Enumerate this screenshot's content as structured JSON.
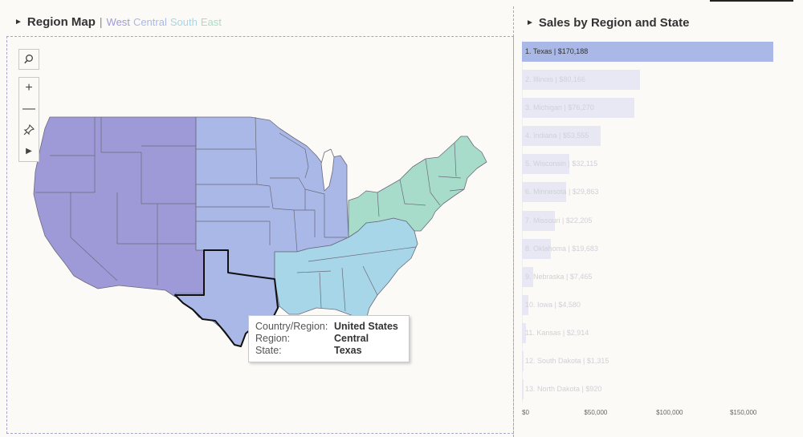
{
  "map_panel": {
    "title": "Region Map",
    "separator": "|",
    "legend": [
      {
        "label": "West",
        "color": "#9e9ad7"
      },
      {
        "label": "Central",
        "color": "#a9b8e6"
      },
      {
        "label": "South",
        "color": "#a7d6e8"
      },
      {
        "label": "East",
        "color": "#a8dcca"
      }
    ],
    "tooltip": {
      "rows": [
        {
          "key": "Country/Region:",
          "value": "United States"
        },
        {
          "key": "Region:",
          "value": "Central"
        },
        {
          "key": "State:",
          "value": "Texas"
        }
      ]
    }
  },
  "bar_panel": {
    "title": "Sales by Region and State",
    "selected_color": "#a9b8e6",
    "bar_color": "#e7e8f4"
  },
  "chart_data": {
    "type": "bar",
    "orientation": "horizontal",
    "categories": [
      "Texas",
      "Illinois",
      "Michigan",
      "Indiana",
      "Wisconsin",
      "Minnesota",
      "Missouri",
      "Oklahoma",
      "Nebraska",
      "Iowa",
      "Kansas",
      "South Dakota",
      "North Dakota"
    ],
    "labels": [
      "1. Texas | $170,188",
      "2. Illinois | $80,166",
      "3. Michigan | $76,270",
      "4. Indiana | $53,555",
      "5. Wisconsin | $32,115",
      "6. Minnesota | $29,863",
      "7. Missouri | $22,205",
      "8. Oklahoma | $19,683",
      "9. Nebraska | $7,465",
      "10. Iowa | $4,580",
      "11. Kansas | $2,914",
      "12. South Dakota | $1,315",
      "13. North Dakota | $920"
    ],
    "values": [
      170188,
      80166,
      76270,
      53555,
      32115,
      29863,
      22205,
      19683,
      7465,
      4580,
      2914,
      1315,
      920
    ],
    "selected_index": 0,
    "xticks": [
      "$0",
      "$50,000",
      "$100,000",
      "$150,000"
    ],
    "xtick_values": [
      0,
      50000,
      100000,
      150000
    ],
    "xlim": [
      0,
      185000
    ]
  }
}
